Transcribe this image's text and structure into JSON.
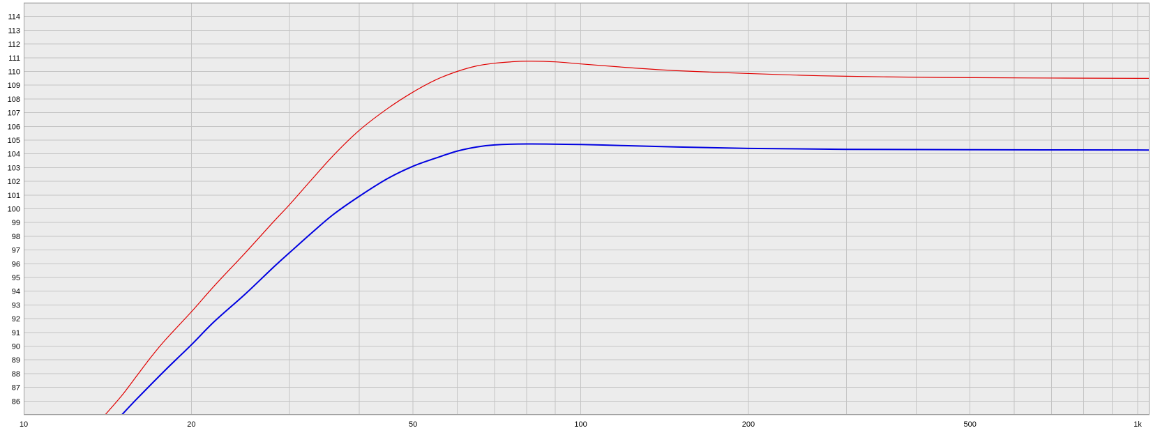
{
  "chart_data": {
    "type": "line",
    "title": "",
    "xlabel": "",
    "ylabel": "",
    "x_scale": "log",
    "xlim": [
      10,
      1050
    ],
    "ylim": [
      85,
      115
    ],
    "grid": true,
    "x_tick_labels": [
      {
        "value": 10,
        "label": "10"
      },
      {
        "value": 20,
        "label": "20"
      },
      {
        "value": 50,
        "label": "50"
      },
      {
        "value": 100,
        "label": "100"
      },
      {
        "value": 200,
        "label": "200"
      },
      {
        "value": 500,
        "label": "500"
      },
      {
        "value": 1000,
        "label": "1k"
      }
    ],
    "x_minor_grid": [
      20,
      30,
      40,
      50,
      60,
      70,
      80,
      90,
      100,
      200,
      300,
      400,
      500,
      600,
      700,
      800,
      900,
      1000
    ],
    "y_tick_labels": [
      "86",
      "87",
      "88",
      "89",
      "90",
      "91",
      "92",
      "93",
      "94",
      "95",
      "96",
      "97",
      "98",
      "99",
      "100",
      "101",
      "102",
      "103",
      "104",
      "105",
      "106",
      "107",
      "108",
      "109",
      "110",
      "111",
      "112",
      "113",
      "114"
    ],
    "colors": {
      "plot_background": "#ececec",
      "grid": "#c4c4c4",
      "frame": "#a0a0a0"
    },
    "series": [
      {
        "color": "#e00000",
        "width": 1.2,
        "points": [
          [
            14.0,
            85.0
          ],
          [
            15.0,
            86.4
          ],
          [
            16.0,
            87.9
          ],
          [
            17.0,
            89.3
          ],
          [
            18.0,
            90.5
          ],
          [
            20.0,
            92.5
          ],
          [
            22.0,
            94.4
          ],
          [
            25.0,
            96.8
          ],
          [
            28.0,
            99.0
          ],
          [
            30.0,
            100.3
          ],
          [
            33.0,
            102.2
          ],
          [
            36.0,
            103.9
          ],
          [
            40.0,
            105.7
          ],
          [
            45.0,
            107.3
          ],
          [
            50.0,
            108.5
          ],
          [
            55.0,
            109.4
          ],
          [
            60.0,
            110.0
          ],
          [
            65.0,
            110.4
          ],
          [
            70.0,
            110.6
          ],
          [
            75.0,
            110.7
          ],
          [
            80.0,
            110.75
          ],
          [
            90.0,
            110.7
          ],
          [
            100.0,
            110.55
          ],
          [
            120.0,
            110.3
          ],
          [
            150.0,
            110.05
          ],
          [
            200.0,
            109.85
          ],
          [
            250.0,
            109.72
          ],
          [
            300.0,
            109.65
          ],
          [
            400.0,
            109.58
          ],
          [
            500.0,
            109.55
          ],
          [
            700.0,
            109.52
          ],
          [
            1000.0,
            109.5
          ],
          [
            1050.0,
            109.5
          ]
        ]
      },
      {
        "color": "#0000e0",
        "width": 2.0,
        "points": [
          [
            15.0,
            85.0
          ],
          [
            16.0,
            86.2
          ],
          [
            18.0,
            88.3
          ],
          [
            20.0,
            90.1
          ],
          [
            22.0,
            91.8
          ],
          [
            25.0,
            93.8
          ],
          [
            28.0,
            95.7
          ],
          [
            30.0,
            96.8
          ],
          [
            33.0,
            98.3
          ],
          [
            36.0,
            99.6
          ],
          [
            40.0,
            100.9
          ],
          [
            45.0,
            102.2
          ],
          [
            50.0,
            103.1
          ],
          [
            55.0,
            103.7
          ],
          [
            60.0,
            104.2
          ],
          [
            65.0,
            104.5
          ],
          [
            70.0,
            104.65
          ],
          [
            80.0,
            104.72
          ],
          [
            100.0,
            104.68
          ],
          [
            120.0,
            104.6
          ],
          [
            150.0,
            104.5
          ],
          [
            200.0,
            104.4
          ],
          [
            300.0,
            104.33
          ],
          [
            500.0,
            104.3
          ],
          [
            1000.0,
            104.28
          ],
          [
            1050.0,
            104.28
          ]
        ]
      }
    ]
  }
}
